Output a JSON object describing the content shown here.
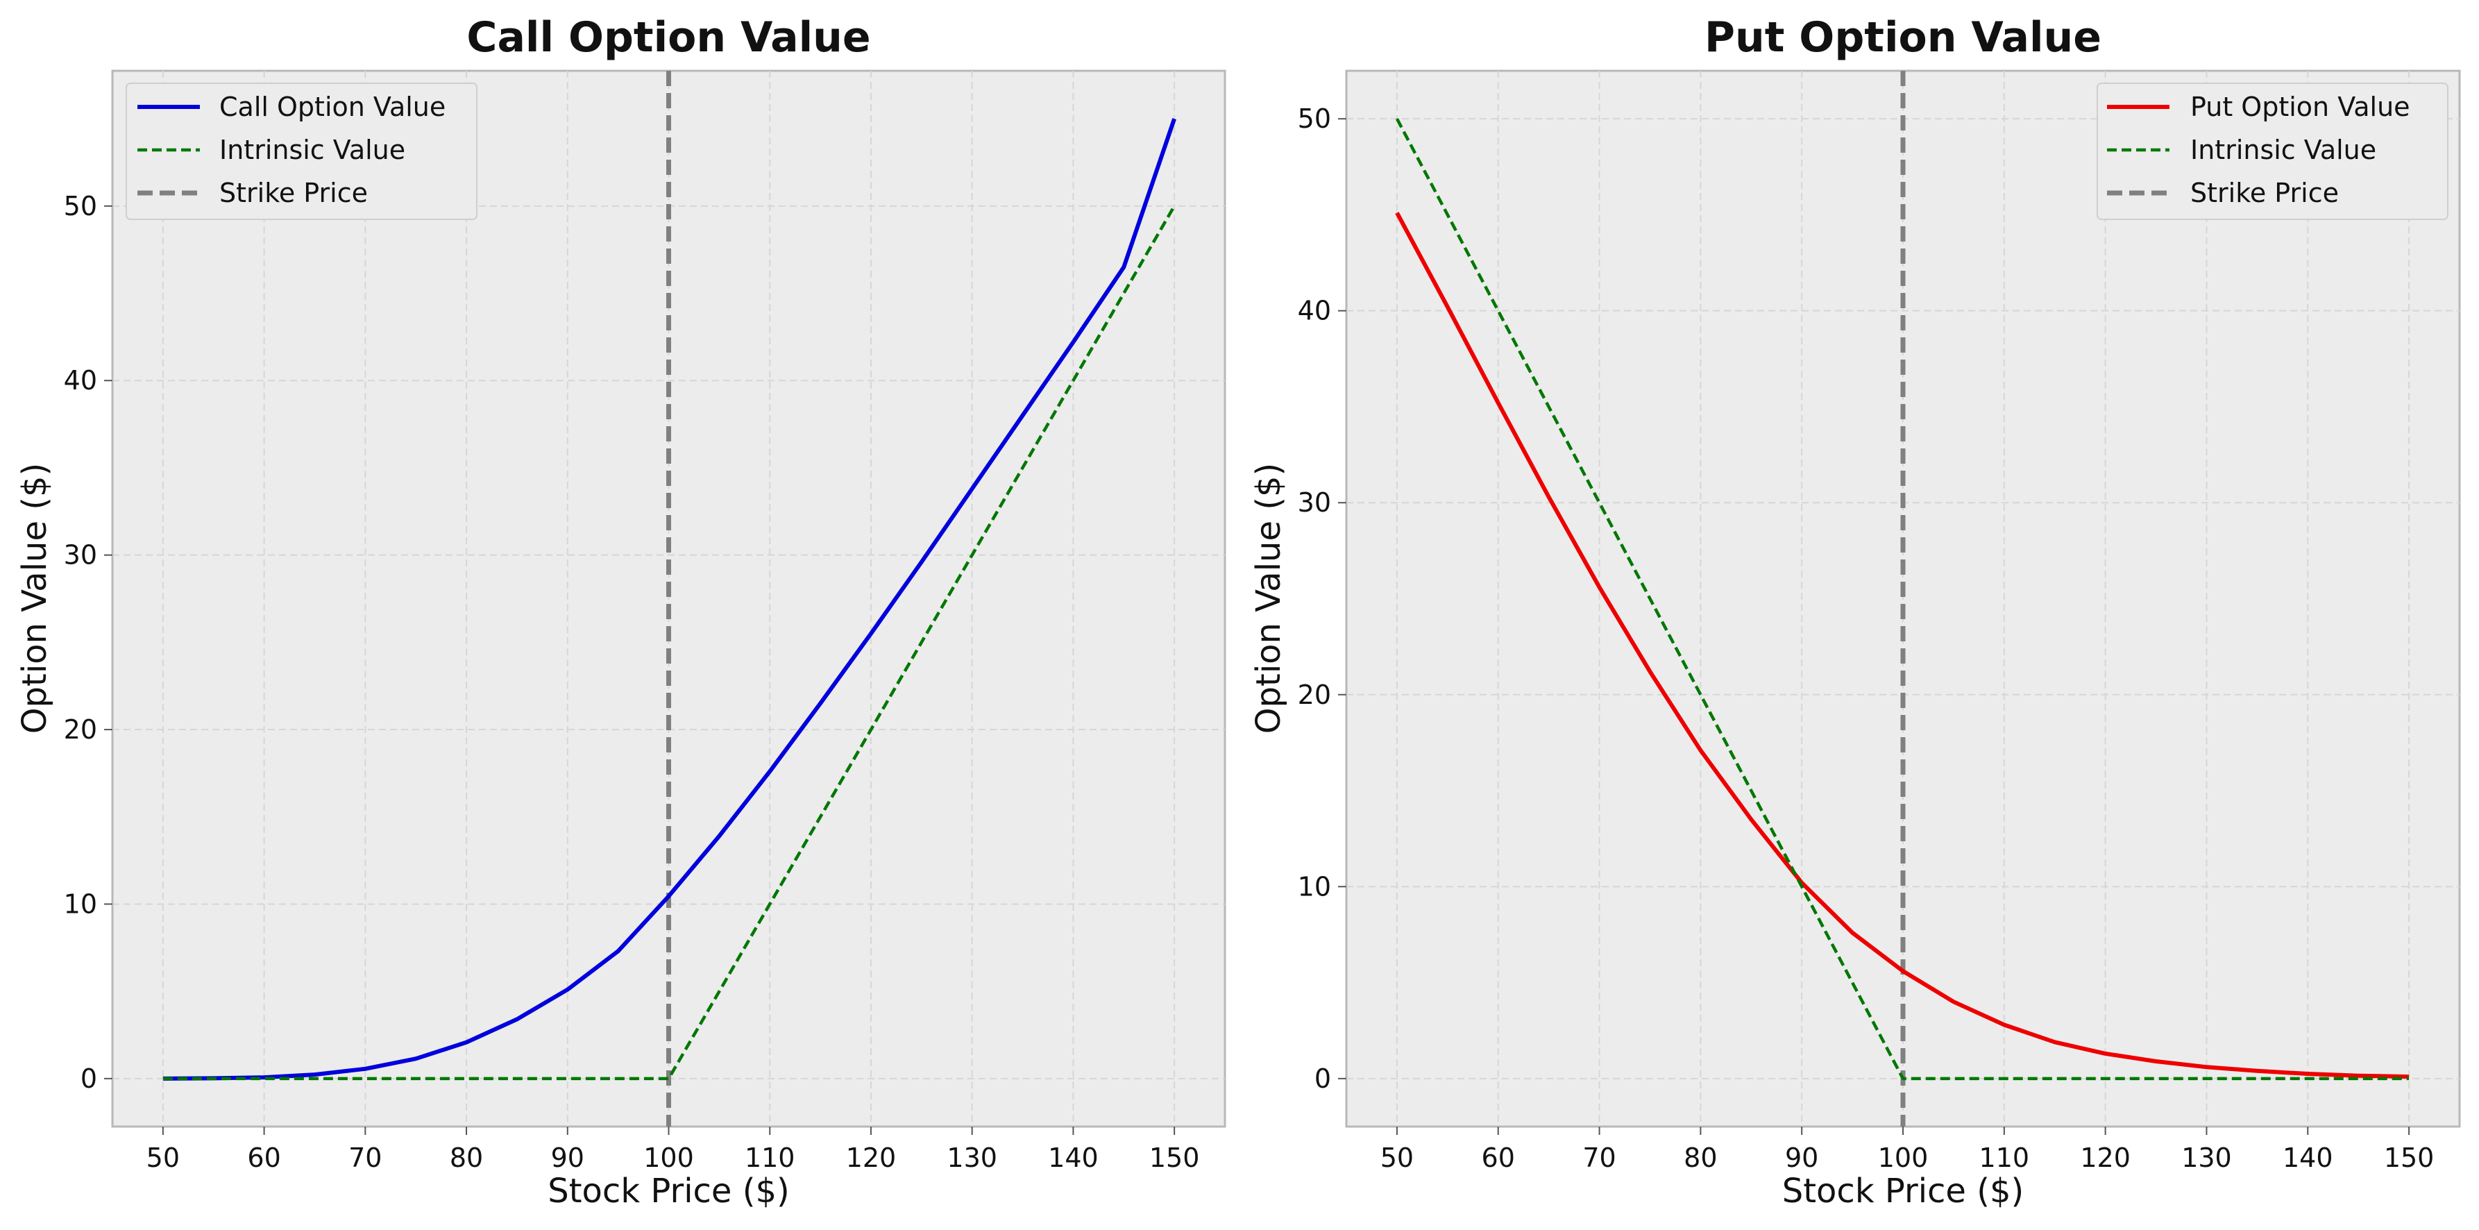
{
  "chart_data": [
    {
      "type": "line",
      "title": "Call Option Value",
      "xlabel": "Stock Price ($)",
      "ylabel": "Option Value ($)",
      "xlim": [
        45,
        155
      ],
      "ylim": [
        -2.75,
        57.75
      ],
      "xticks": [
        50,
        60,
        70,
        80,
        90,
        100,
        110,
        120,
        130,
        140,
        150
      ],
      "yticks": [
        0,
        10,
        20,
        30,
        40,
        50
      ],
      "grid": true,
      "legend_position": "top-left",
      "x": [
        50,
        55,
        60,
        65,
        70,
        75,
        80,
        85,
        90,
        95,
        100,
        105,
        110,
        115,
        120,
        125,
        130,
        135,
        140,
        145,
        150
      ],
      "series": [
        {
          "name": "Call Option Value",
          "color": "#0000dd",
          "style": "solid",
          "values": [
            0.0,
            0.02,
            0.07,
            0.23,
            0.56,
            1.14,
            2.08,
            3.4,
            5.1,
            7.3,
            10.45,
            13.9,
            17.6,
            21.5,
            25.5,
            29.6,
            33.8,
            38.0,
            42.2,
            46.5,
            55.0
          ]
        },
        {
          "name": "Intrinsic Value",
          "color": "#007700",
          "style": "dashed",
          "values": [
            0,
            0,
            0,
            0,
            0,
            0,
            0,
            0,
            0,
            0,
            0,
            5,
            10,
            15,
            20,
            25,
            30,
            35,
            40,
            45,
            50
          ]
        }
      ],
      "vlines": [
        {
          "name": "Strike Price",
          "x": 100,
          "color": "#808080"
        }
      ]
    },
    {
      "type": "line",
      "title": "Put Option Value",
      "xlabel": "Stock Price ($)",
      "ylabel": "Option Value ($)",
      "xlim": [
        45,
        155
      ],
      "ylim": [
        -2.5,
        52.5
      ],
      "xticks": [
        50,
        60,
        70,
        80,
        90,
        100,
        110,
        120,
        130,
        140,
        150
      ],
      "yticks": [
        0,
        10,
        20,
        30,
        40,
        50
      ],
      "grid": true,
      "legend_position": "top-right",
      "x": [
        50,
        55,
        60,
        65,
        70,
        75,
        80,
        85,
        90,
        95,
        100,
        105,
        110,
        115,
        120,
        125,
        130,
        135,
        140,
        145,
        150
      ],
      "series": [
        {
          "name": "Put Option Value",
          "color": "#ee0000",
          "style": "solid",
          "values": [
            45.1,
            40.2,
            35.2,
            30.3,
            25.6,
            21.2,
            17.1,
            13.5,
            10.2,
            7.6,
            5.6,
            4.0,
            2.8,
            1.9,
            1.3,
            0.9,
            0.6,
            0.4,
            0.25,
            0.15,
            0.1
          ]
        },
        {
          "name": "Intrinsic Value",
          "color": "#007700",
          "style": "dashed",
          "values": [
            50,
            45,
            40,
            35,
            30,
            25,
            20,
            15,
            10,
            5,
            0,
            0,
            0,
            0,
            0,
            0,
            0,
            0,
            0,
            0,
            0
          ]
        }
      ],
      "vlines": [
        {
          "name": "Strike Price",
          "x": 100,
          "color": "#808080"
        }
      ]
    }
  ]
}
